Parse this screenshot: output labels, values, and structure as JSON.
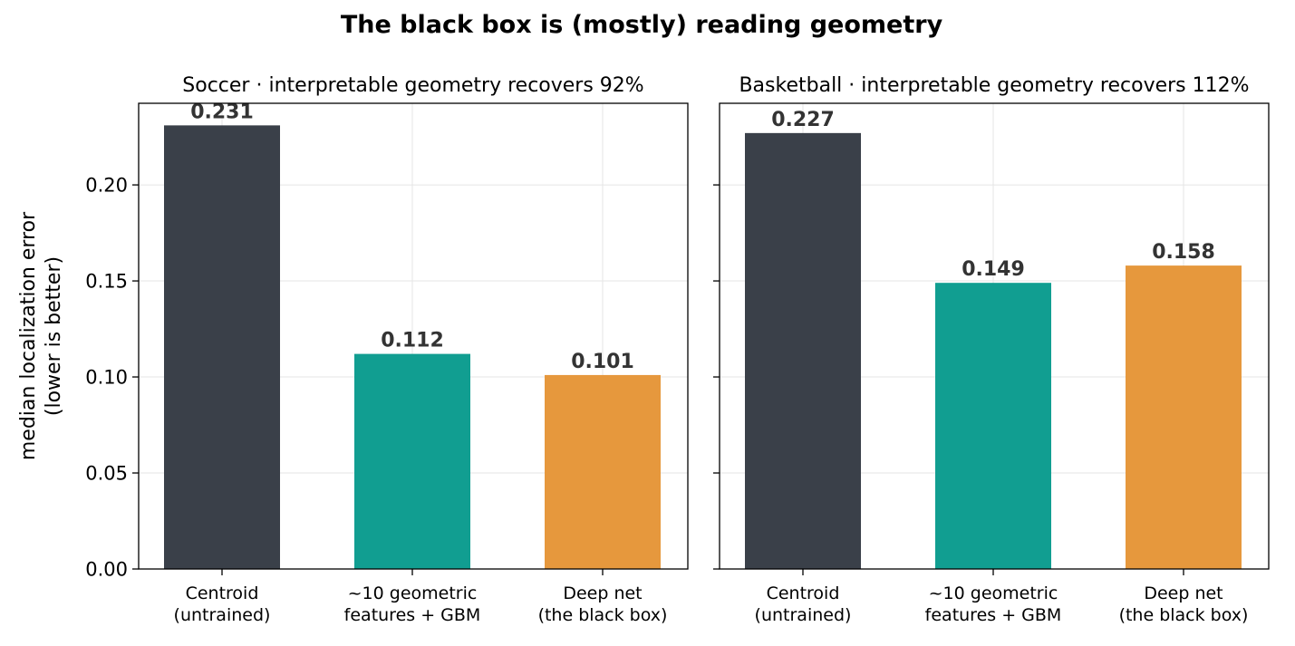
{
  "suptitle": "The black box is (mostly) reading geometry",
  "ylabel_line1": "median localization error",
  "ylabel_line2": "(lower is better)",
  "colors": {
    "centroid": "#3a4049",
    "geometric": "#119e91",
    "deepnet": "#e6983d",
    "value_label": "#333333"
  },
  "chart_data": [
    {
      "type": "bar",
      "title": "Soccer  ·  interpretable geometry recovers 92%",
      "categories": [
        [
          "Centroid",
          "(untrained)"
        ],
        [
          "~10 geometric",
          "features + GBM"
        ],
        [
          "Deep net",
          "(the black box)"
        ]
      ],
      "values": [
        0.231,
        0.112,
        0.101
      ],
      "value_labels": [
        "0.231",
        "0.112",
        "0.101"
      ],
      "ylim": [
        0,
        0.2425
      ],
      "yticks": [
        "0.00",
        "0.05",
        "0.10",
        "0.15",
        "0.20"
      ],
      "grid": true
    },
    {
      "type": "bar",
      "title": "Basketball  ·  interpretable geometry recovers 112%",
      "categories": [
        [
          "Centroid",
          "(untrained)"
        ],
        [
          "~10 geometric",
          "features + GBM"
        ],
        [
          "Deep net",
          "(the black box)"
        ]
      ],
      "values": [
        0.227,
        0.149,
        0.158
      ],
      "value_labels": [
        "0.227",
        "0.149",
        "0.158"
      ],
      "ylim": [
        0,
        0.2425
      ],
      "yticks": [
        "0.00",
        "0.05",
        "0.10",
        "0.15",
        "0.20"
      ],
      "grid": true
    }
  ]
}
